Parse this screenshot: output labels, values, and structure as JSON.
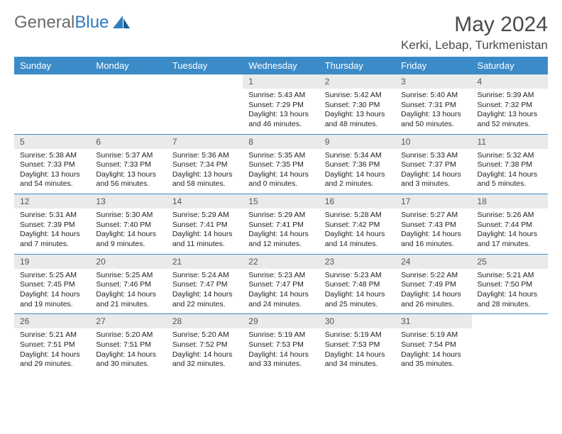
{
  "brand": {
    "part1": "General",
    "part2": "Blue"
  },
  "title": "May 2024",
  "location": "Kerki, Lebap, Turkmenistan",
  "style": {
    "header_bg": "#3b8bc8",
    "header_fg": "#ffffff",
    "daynum_bg": "#eaeaea",
    "row_border": "#3b8bc8",
    "page_bg": "#ffffff",
    "text_color": "#222222",
    "title_color": "#4a4a4a",
    "logo_gray": "#6a6a6a",
    "logo_blue": "#2e7cc0",
    "font_family": "Arial",
    "th_fontsize": 13,
    "body_fontsize": 10.5,
    "title_fontsize": 30,
    "location_fontsize": 17
  },
  "weekdays": [
    "Sunday",
    "Monday",
    "Tuesday",
    "Wednesday",
    "Thursday",
    "Friday",
    "Saturday"
  ],
  "weeks": [
    [
      {
        "n": "",
        "empty": true
      },
      {
        "n": "",
        "empty": true
      },
      {
        "n": "",
        "empty": true
      },
      {
        "n": "1",
        "sunrise": "5:43 AM",
        "sunset": "7:29 PM",
        "dl1": "Daylight: 13 hours",
        "dl2": "and 46 minutes."
      },
      {
        "n": "2",
        "sunrise": "5:42 AM",
        "sunset": "7:30 PM",
        "dl1": "Daylight: 13 hours",
        "dl2": "and 48 minutes."
      },
      {
        "n": "3",
        "sunrise": "5:40 AM",
        "sunset": "7:31 PM",
        "dl1": "Daylight: 13 hours",
        "dl2": "and 50 minutes."
      },
      {
        "n": "4",
        "sunrise": "5:39 AM",
        "sunset": "7:32 PM",
        "dl1": "Daylight: 13 hours",
        "dl2": "and 52 minutes."
      }
    ],
    [
      {
        "n": "5",
        "sunrise": "5:38 AM",
        "sunset": "7:33 PM",
        "dl1": "Daylight: 13 hours",
        "dl2": "and 54 minutes."
      },
      {
        "n": "6",
        "sunrise": "5:37 AM",
        "sunset": "7:33 PM",
        "dl1": "Daylight: 13 hours",
        "dl2": "and 56 minutes."
      },
      {
        "n": "7",
        "sunrise": "5:36 AM",
        "sunset": "7:34 PM",
        "dl1": "Daylight: 13 hours",
        "dl2": "and 58 minutes."
      },
      {
        "n": "8",
        "sunrise": "5:35 AM",
        "sunset": "7:35 PM",
        "dl1": "Daylight: 14 hours",
        "dl2": "and 0 minutes."
      },
      {
        "n": "9",
        "sunrise": "5:34 AM",
        "sunset": "7:36 PM",
        "dl1": "Daylight: 14 hours",
        "dl2": "and 2 minutes."
      },
      {
        "n": "10",
        "sunrise": "5:33 AM",
        "sunset": "7:37 PM",
        "dl1": "Daylight: 14 hours",
        "dl2": "and 3 minutes."
      },
      {
        "n": "11",
        "sunrise": "5:32 AM",
        "sunset": "7:38 PM",
        "dl1": "Daylight: 14 hours",
        "dl2": "and 5 minutes."
      }
    ],
    [
      {
        "n": "12",
        "sunrise": "5:31 AM",
        "sunset": "7:39 PM",
        "dl1": "Daylight: 14 hours",
        "dl2": "and 7 minutes."
      },
      {
        "n": "13",
        "sunrise": "5:30 AM",
        "sunset": "7:40 PM",
        "dl1": "Daylight: 14 hours",
        "dl2": "and 9 minutes."
      },
      {
        "n": "14",
        "sunrise": "5:29 AM",
        "sunset": "7:41 PM",
        "dl1": "Daylight: 14 hours",
        "dl2": "and 11 minutes."
      },
      {
        "n": "15",
        "sunrise": "5:29 AM",
        "sunset": "7:41 PM",
        "dl1": "Daylight: 14 hours",
        "dl2": "and 12 minutes."
      },
      {
        "n": "16",
        "sunrise": "5:28 AM",
        "sunset": "7:42 PM",
        "dl1": "Daylight: 14 hours",
        "dl2": "and 14 minutes."
      },
      {
        "n": "17",
        "sunrise": "5:27 AM",
        "sunset": "7:43 PM",
        "dl1": "Daylight: 14 hours",
        "dl2": "and 16 minutes."
      },
      {
        "n": "18",
        "sunrise": "5:26 AM",
        "sunset": "7:44 PM",
        "dl1": "Daylight: 14 hours",
        "dl2": "and 17 minutes."
      }
    ],
    [
      {
        "n": "19",
        "sunrise": "5:25 AM",
        "sunset": "7:45 PM",
        "dl1": "Daylight: 14 hours",
        "dl2": "and 19 minutes."
      },
      {
        "n": "20",
        "sunrise": "5:25 AM",
        "sunset": "7:46 PM",
        "dl1": "Daylight: 14 hours",
        "dl2": "and 21 minutes."
      },
      {
        "n": "21",
        "sunrise": "5:24 AM",
        "sunset": "7:47 PM",
        "dl1": "Daylight: 14 hours",
        "dl2": "and 22 minutes."
      },
      {
        "n": "22",
        "sunrise": "5:23 AM",
        "sunset": "7:47 PM",
        "dl1": "Daylight: 14 hours",
        "dl2": "and 24 minutes."
      },
      {
        "n": "23",
        "sunrise": "5:23 AM",
        "sunset": "7:48 PM",
        "dl1": "Daylight: 14 hours",
        "dl2": "and 25 minutes."
      },
      {
        "n": "24",
        "sunrise": "5:22 AM",
        "sunset": "7:49 PM",
        "dl1": "Daylight: 14 hours",
        "dl2": "and 26 minutes."
      },
      {
        "n": "25",
        "sunrise": "5:21 AM",
        "sunset": "7:50 PM",
        "dl1": "Daylight: 14 hours",
        "dl2": "and 28 minutes."
      }
    ],
    [
      {
        "n": "26",
        "sunrise": "5:21 AM",
        "sunset": "7:51 PM",
        "dl1": "Daylight: 14 hours",
        "dl2": "and 29 minutes."
      },
      {
        "n": "27",
        "sunrise": "5:20 AM",
        "sunset": "7:51 PM",
        "dl1": "Daylight: 14 hours",
        "dl2": "and 30 minutes."
      },
      {
        "n": "28",
        "sunrise": "5:20 AM",
        "sunset": "7:52 PM",
        "dl1": "Daylight: 14 hours",
        "dl2": "and 32 minutes."
      },
      {
        "n": "29",
        "sunrise": "5:19 AM",
        "sunset": "7:53 PM",
        "dl1": "Daylight: 14 hours",
        "dl2": "and 33 minutes."
      },
      {
        "n": "30",
        "sunrise": "5:19 AM",
        "sunset": "7:53 PM",
        "dl1": "Daylight: 14 hours",
        "dl2": "and 34 minutes."
      },
      {
        "n": "31",
        "sunrise": "5:19 AM",
        "sunset": "7:54 PM",
        "dl1": "Daylight: 14 hours",
        "dl2": "and 35 minutes."
      },
      {
        "n": "",
        "empty": true
      }
    ]
  ],
  "labels": {
    "sunrise": "Sunrise: ",
    "sunset": "Sunset: "
  }
}
